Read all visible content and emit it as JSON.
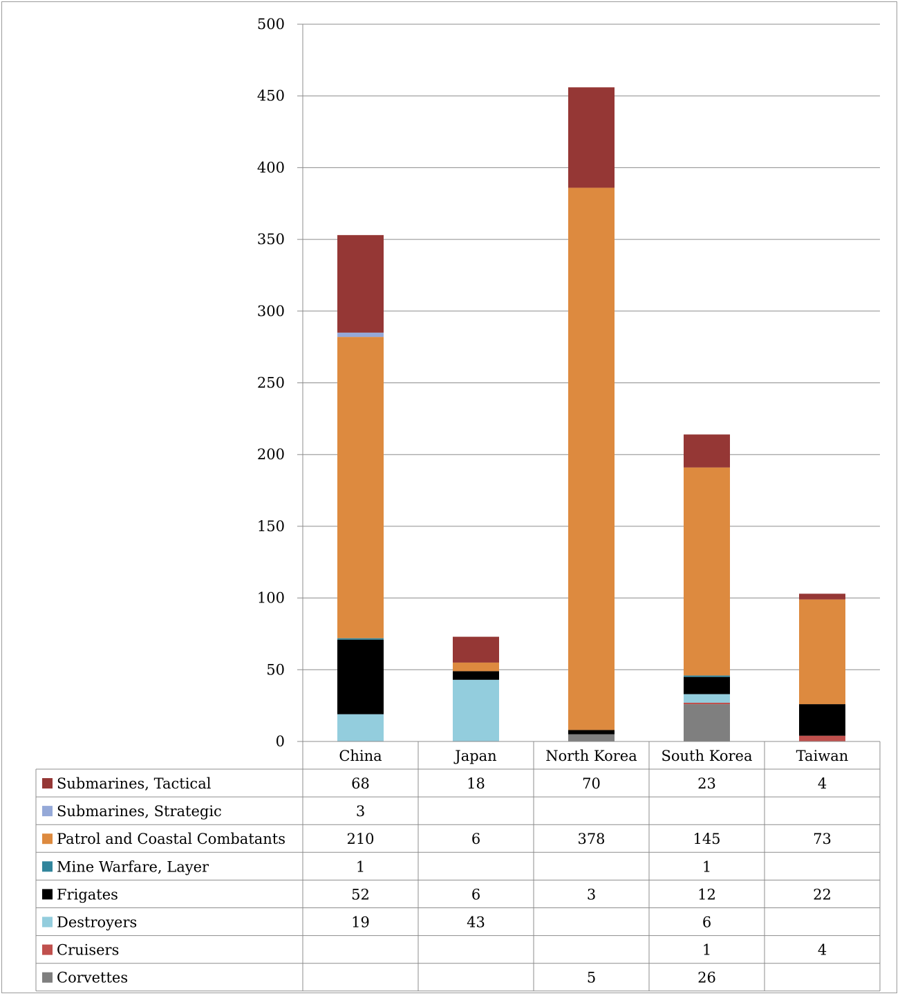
{
  "chart_data": {
    "type": "bar",
    "stacked": true,
    "title": "",
    "xlabel": "",
    "ylabel": "",
    "ylim": [
      0,
      500
    ],
    "yticks": [
      0,
      50,
      100,
      150,
      200,
      250,
      300,
      350,
      400,
      450,
      500
    ],
    "grid": true,
    "legend": "data-table-left",
    "categories": [
      "China",
      "Japan",
      "North Korea",
      "South Korea",
      "Taiwan"
    ],
    "series": [
      {
        "name": "Corvettes",
        "color": "#7f7f7f",
        "values": [
          null,
          null,
          5,
          26,
          null
        ]
      },
      {
        "name": "Cruisers",
        "color": "#c0504d",
        "values": [
          null,
          null,
          null,
          1,
          4
        ]
      },
      {
        "name": "Destroyers",
        "color": "#93cddd",
        "values": [
          19,
          43,
          null,
          6,
          null
        ]
      },
      {
        "name": "Frigates",
        "color": "#000000",
        "values": [
          52,
          6,
          3,
          12,
          22
        ]
      },
      {
        "name": "Mine Warfare, Layer",
        "color": "#31859c",
        "values": [
          1,
          null,
          null,
          1,
          null
        ]
      },
      {
        "name": "Patrol and Coastal Combatants",
        "color": "#dd8a3f",
        "values": [
          210,
          6,
          378,
          145,
          73
        ]
      },
      {
        "name": "Submarines, Strategic",
        "color": "#95a9d8",
        "values": [
          3,
          null,
          null,
          null,
          null
        ]
      },
      {
        "name": "Submarines, Tactical",
        "color": "#953735",
        "values": [
          68,
          18,
          70,
          23,
          4
        ]
      }
    ]
  }
}
